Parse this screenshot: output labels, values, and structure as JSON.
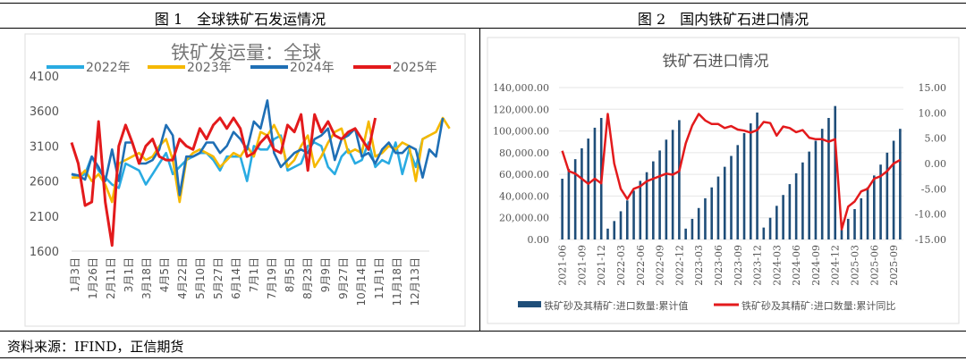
{
  "captions": {
    "left": "图 1　全球铁矿石发运情况",
    "right": "图 2　国内铁矿石进口情况"
  },
  "source": "资料来源：IFIND，正信期货",
  "chart_data": [
    {
      "type": "line",
      "title": "铁矿发运量：全球",
      "ylim": [
        1600,
        4100
      ],
      "yticks": [
        1600,
        2100,
        2600,
        3100,
        3600,
        4100
      ],
      "xticklabels": [
        "1月3日",
        "1月26日",
        "2月11日",
        "3月1日",
        "3月18日",
        "4月5日",
        "4月22日",
        "5月10日",
        "5月27日",
        "6月14日",
        "7月1日",
        "7月19日",
        "8月5日",
        "8月23日",
        "9月9日",
        "9月27日",
        "10月14日",
        "11月1日",
        "11月18日",
        "12月13日"
      ],
      "legend": "top",
      "grid": true,
      "series": [
        {
          "name": "2022年",
          "color": "#29abe2",
          "values": [
            2700,
            2650,
            2700,
            2950,
            2750,
            2650,
            2550,
            2500,
            2850,
            2800,
            2750,
            2550,
            2700,
            2850,
            3000,
            2700,
            2800,
            2900,
            2950,
            3000,
            3000,
            2900,
            2750,
            2950,
            2950,
            2950,
            2600,
            3100,
            3050,
            3050,
            3200,
            3250,
            2750,
            2800,
            2850,
            3100,
            3150,
            3100,
            2800,
            2700,
            2950,
            3050,
            2850,
            2900,
            3150,
            2800,
            2900,
            2850,
            3150,
            2700,
            3050,
            2800,
            3200,
            3250
          ]
        },
        {
          "name": "2023年",
          "color": "#f5b800",
          "values": [
            2650,
            2650,
            2750,
            2600,
            2700,
            2550,
            2300,
            2850,
            2900,
            2950,
            3000,
            2900,
            2950,
            3100,
            3200,
            2900,
            2300,
            2900,
            3000,
            3050,
            3000,
            2950,
            2800,
            2900,
            3000,
            2950,
            3100,
            2950,
            3300,
            3250,
            3400,
            3200,
            2800,
            2900,
            3100,
            3250,
            2800,
            2950,
            3150,
            3300,
            3350,
            3000,
            3050,
            3000,
            3450,
            2950,
            3000,
            3100,
            3050,
            3150,
            3100,
            2600,
            3200,
            3250,
            3300,
            3500,
            3350
          ]
        },
        {
          "name": "2024年",
          "color": "#1f6fb5",
          "values": [
            2700,
            2680,
            2620,
            2950,
            2800,
            2600,
            3050,
            2600,
            3150,
            3150,
            2850,
            2850,
            2900,
            3050,
            3400,
            3250,
            2400,
            2950,
            2950,
            3000,
            3150,
            3150,
            3000,
            3100,
            3300,
            3200,
            3050,
            3450,
            3350,
            3750,
            3000,
            2800,
            2900,
            3000,
            3050,
            3000,
            3200,
            3250,
            3350,
            2900,
            3200,
            3250,
            3350,
            2950,
            3000,
            2850,
            3050,
            3150,
            3000,
            3000,
            3100,
            3050,
            2650,
            3050,
            2950,
            3500
          ]
        },
        {
          "name": "2025年",
          "color": "#e31a1c",
          "values": [
            3150,
            2850,
            2250,
            2300,
            3450,
            2300,
            1680,
            3100,
            3400,
            3150,
            2850,
            3100,
            3200,
            2950,
            2900,
            2900,
            3200,
            3100,
            3050,
            3350,
            3200,
            3400,
            3500,
            3350,
            3500,
            3350,
            2950,
            3000,
            3150,
            3250,
            3050,
            3000,
            3400,
            3300,
            3550,
            2750,
            3550,
            3300,
            3450,
            3250,
            3200,
            3300,
            3350,
            3200,
            3050,
            3500
          ]
        }
      ]
    },
    {
      "type": "bar+line",
      "title": "铁矿石进口情况",
      "categories": [
        "2021-06",
        "2021-07",
        "2021-08",
        "2021-09",
        "2021-10",
        "2021-11",
        "2021-12",
        "2022-01",
        "2022-02",
        "2022-03",
        "2022-04",
        "2022-05",
        "2022-06",
        "2022-07",
        "2022-08",
        "2022-09",
        "2022-10",
        "2022-11",
        "2022-12",
        "2023-01",
        "2023-02",
        "2023-03",
        "2023-04",
        "2023-05",
        "2023-06",
        "2023-07",
        "2023-08",
        "2023-09",
        "2023-10",
        "2023-11",
        "2023-12",
        "2024-01",
        "2024-02",
        "2024-03",
        "2024-04",
        "2024-05",
        "2024-06",
        "2024-07",
        "2024-08",
        "2024-09",
        "2024-10",
        "2024-11",
        "2024-12",
        "2025-01",
        "2025-02",
        "2025-03",
        "2025-04",
        "2025-05",
        "2025-06",
        "2025-07",
        "2025-08",
        "2025-09",
        "2025-10"
      ],
      "xticklabels": [
        "2021-06",
        "2021-09",
        "2021-12",
        "2022-03",
        "2022-06",
        "2022-09",
        "2022-12",
        "2023-03",
        "2023-06",
        "2023-09",
        "2023-12",
        "2024-03",
        "2024-06",
        "2024-09",
        "2024-12",
        "2025-03",
        "2025-06",
        "2025-09"
      ],
      "ylim_left": [
        0,
        140000
      ],
      "yticks_left": [
        "0.00",
        "20,000.00",
        "40,000.00",
        "60,000.00",
        "80,000.00",
        "100,000.00",
        "120,000.00",
        "140,000.00"
      ],
      "ylim_right": [
        -15,
        15
      ],
      "yticks_right": [
        "-15.00",
        "-10.00",
        "-5.00",
        "0.00",
        "5.00",
        "10.00",
        "15.00"
      ],
      "series": [
        {
          "name": "铁矿砂及其精矿:进口数量:累计值",
          "type": "bar",
          "axis": "left",
          "color": "#1f4e79",
          "values": [
            56000,
            65000,
            74000,
            84000,
            93000,
            103000,
            112000,
            10000,
            17000,
            26000,
            36000,
            45000,
            54000,
            62000,
            72000,
            82000,
            92000,
            101000,
            110000,
            10000,
            19000,
            29000,
            38000,
            48000,
            58000,
            67000,
            77000,
            87000,
            98000,
            107000,
            117000,
            11000,
            20000,
            31000,
            41000,
            51000,
            61000,
            71000,
            81000,
            91000,
            102000,
            112000,
            123000,
            9000,
            19000,
            28000,
            38000,
            48000,
            59000,
            69000,
            80000,
            91000,
            102000
          ]
        },
        {
          "name": "铁矿砂及其精矿:进口数量:累计同比",
          "type": "line",
          "axis": "right",
          "color": "#e31a1c",
          "values": [
            2.5,
            -1.5,
            -2,
            -3,
            -4,
            -3,
            -3.9,
            9.8,
            0,
            -5,
            -7,
            -5,
            -4.5,
            -3.5,
            -3,
            -2.5,
            -2,
            -2.2,
            -1.5,
            4,
            7.5,
            9.8,
            8.5,
            7.8,
            7.8,
            7,
            7.4,
            6.7,
            6.5,
            6.1,
            6.6,
            8.2,
            8,
            5.5,
            7.3,
            7,
            6.2,
            6.6,
            5.1,
            4.8,
            4.8,
            4.3,
            4.8,
            -13,
            -8.5,
            -7.5,
            -5.5,
            -5,
            -3,
            -2.5,
            -1.5,
            0,
            0.7
          ]
        }
      ]
    }
  ]
}
